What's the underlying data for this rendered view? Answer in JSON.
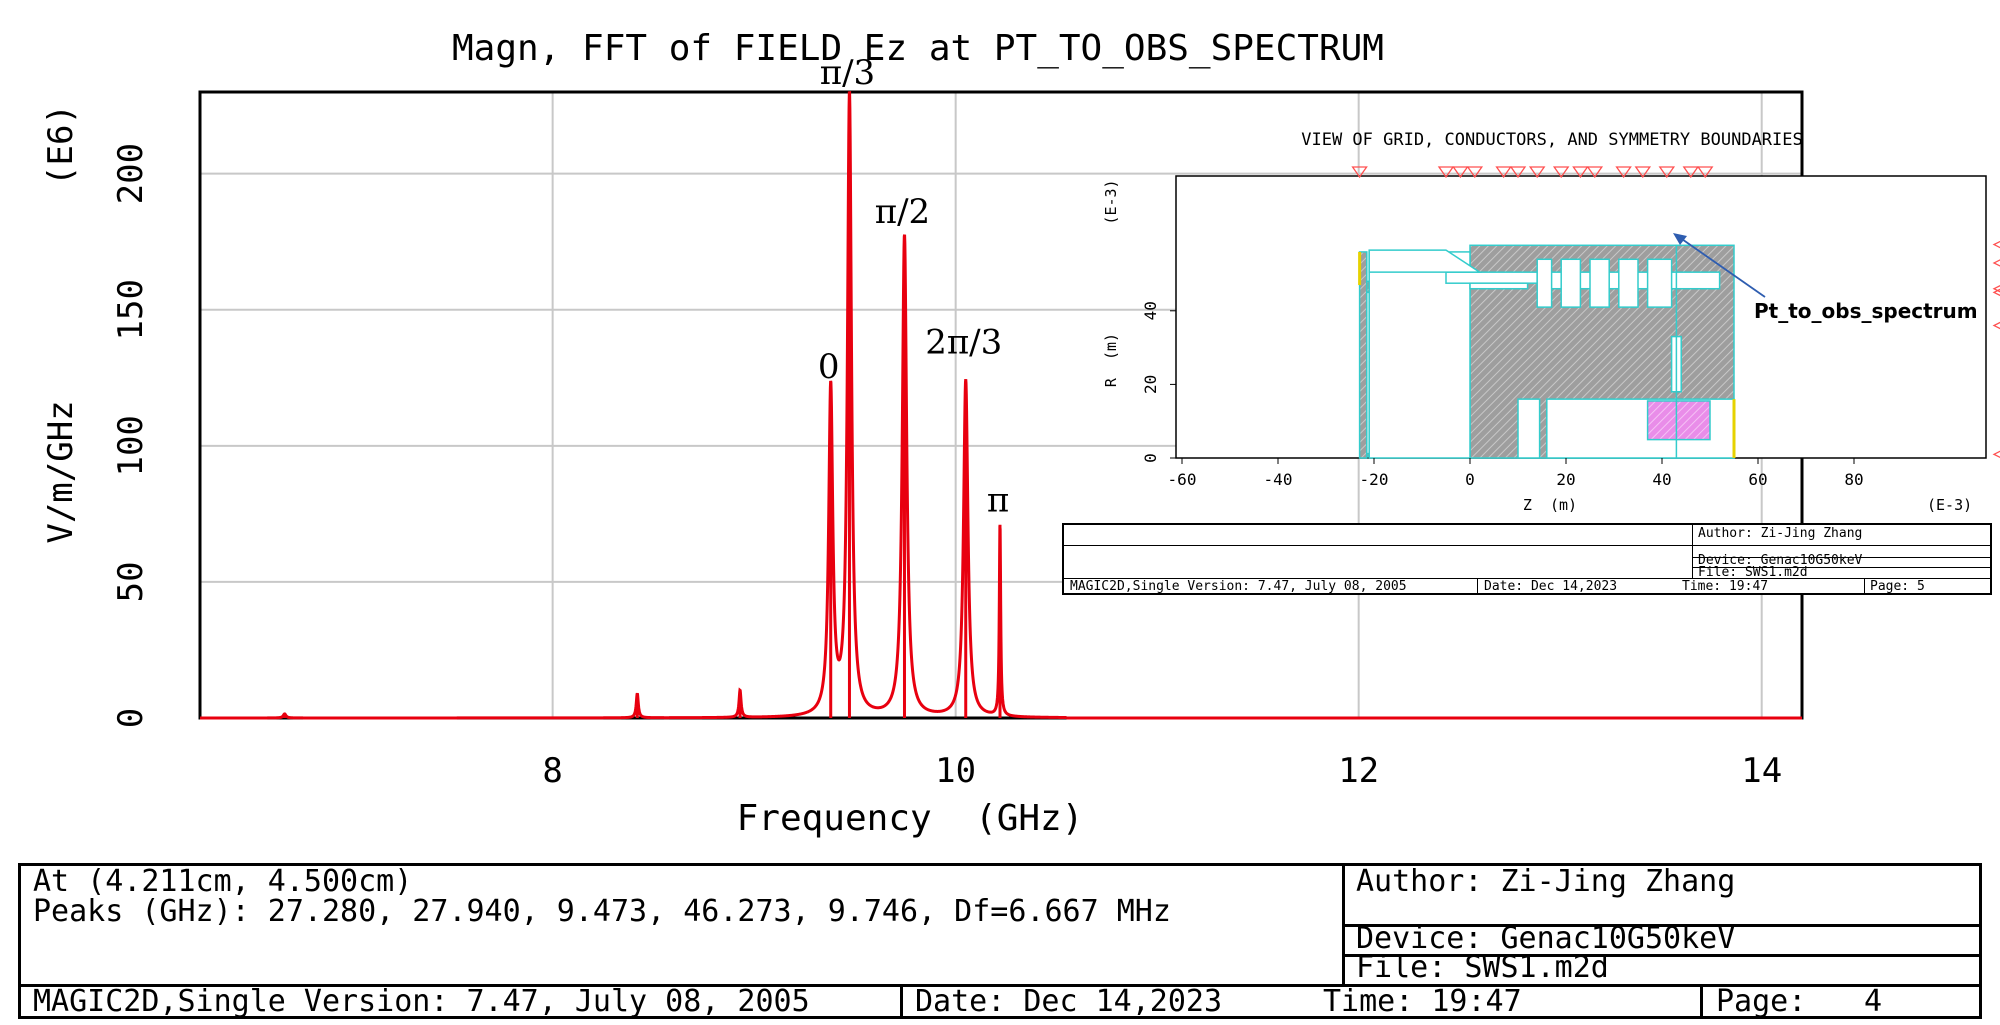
{
  "chart_data": {
    "type": "line",
    "title": "Magn, FFT of FIELD Ez at PT_TO_OBS_SPECTRUM",
    "xlabel": "Frequency  (GHz)",
    "ylabel": "V/m/GHz",
    "y_multiplier": "(E6)",
    "xlim": [
      6.25,
      14.2
    ],
    "ylim": [
      0,
      230
    ],
    "x_ticks": [
      "8",
      "10",
      "12",
      "14"
    ],
    "x_tick_values": [
      8,
      10,
      12,
      14
    ],
    "y_ticks": [
      "0",
      "50",
      "100",
      "150",
      "200"
    ],
    "y_tick_values": [
      0,
      50,
      100,
      150,
      200
    ],
    "grid": true,
    "series_color": "#e8000f",
    "peaks": [
      {
        "x": 6.67,
        "y": 1.5,
        "width": 0.008
      },
      {
        "x": 8.42,
        "y": 9,
        "width": 0.006
      },
      {
        "x": 8.93,
        "y": 10,
        "width": 0.006
      },
      {
        "x": 9.38,
        "y": 120,
        "width": 0.012
      },
      {
        "x": 9.473,
        "y": 228,
        "width": 0.012
      },
      {
        "x": 9.746,
        "y": 177,
        "width": 0.013
      },
      {
        "x": 10.05,
        "y": 124,
        "width": 0.013
      },
      {
        "x": 10.22,
        "y": 71,
        "width": 0.004
      }
    ],
    "annotations": [
      {
        "text": "0",
        "x": 9.38,
        "y": 122
      },
      {
        "text": "π/3",
        "x": 9.473,
        "y": 230
      },
      {
        "text": "π/2",
        "x": 9.746,
        "y": 179
      },
      {
        "text": "2π/3",
        "x": 10.05,
        "y": 131
      },
      {
        "text": "π",
        "x": 10.22,
        "y": 73
      }
    ]
  },
  "inset": {
    "title": "VIEW OF GRID, CONDUCTORS, AND SYMMETRY BOUNDARIES",
    "ylabel": "R  (m)",
    "xlabel": "Z  (m)",
    "x_scale": "(E-3)",
    "y_scale": "(E-3)",
    "x_ticks": [
      "-60",
      "-40",
      "-20",
      "0",
      "20",
      "40",
      "60",
      "80"
    ],
    "x_tick_values": [
      -60,
      -40,
      -20,
      0,
      20,
      40,
      60,
      80
    ],
    "y_ticks": [
      "0",
      "20",
      "40"
    ],
    "y_tick_values": [
      0,
      20,
      40
    ],
    "pointer_label": "Pt_to_obs_spectrum",
    "table": {
      "author": "Author: Zi-Jing Zhang",
      "device": "Device: Genac10G50keV",
      "file": "File: SWS1.m2d",
      "version": "MAGIC2D,Single Version: 7.47, July 08, 2005",
      "date": "Date: Dec 14,2023",
      "time": "Time: 19:47",
      "page": "Page:   5"
    }
  },
  "info": {
    "at": "At (4.211cm, 4.500cm)",
    "peaks": "Peaks (GHz): 27.280, 27.940, 9.473, 46.273, 9.746, Df=6.667 MHz",
    "author": "Author: Zi-Jing Zhang",
    "device": "Device: Genac10G50keV",
    "file": "File: SWS1.m2d",
    "version": "MAGIC2D,Single Version: 7.47, July 08, 2005",
    "date": "Date: Dec 14,2023",
    "time": "Time: 19:47",
    "page_label": "Page:",
    "page_num": "4"
  }
}
